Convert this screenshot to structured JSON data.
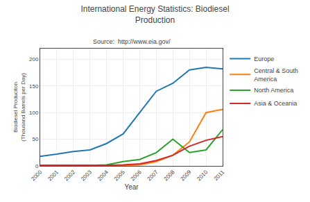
{
  "chart_data": {
    "type": "line",
    "title": "International Energy Statistics: Biodiesel\nProduction",
    "subtitle": "Source:  http://www.eia.gov/",
    "xlabel": "Year",
    "ylabel": "Biodiesel Produciton\n(Thousand Barrels per Day)",
    "x": [
      2000,
      2001,
      2002,
      2003,
      2004,
      2005,
      2006,
      2007,
      2008,
      2009,
      2010,
      2011
    ],
    "series": [
      {
        "name": "Europe",
        "values": [
          18,
          22,
          27,
          30,
          42,
          60,
          100,
          140,
          155,
          180,
          185,
          182
        ]
      },
      {
        "name": "Central & South\nAmerica",
        "values": [
          1,
          1,
          1,
          1,
          1,
          1,
          2,
          8,
          20,
          45,
          100,
          106
        ]
      },
      {
        "name": "North America",
        "values": [
          1,
          1,
          1,
          1,
          2,
          8,
          12,
          25,
          50,
          25,
          30,
          68
        ]
      },
      {
        "name": "Asia & Oceania",
        "values": [
          1,
          1,
          1,
          1,
          1,
          2,
          4,
          10,
          20,
          37,
          48,
          55
        ]
      }
    ],
    "xlim": [
      2000,
      2011
    ],
    "xticks": [
      2000,
      2001,
      2002,
      2003,
      2004,
      2005,
      2006,
      2007,
      2008,
      2009,
      2010,
      2011
    ],
    "ylim": [
      0,
      220
    ],
    "yticks": [
      0,
      50,
      100,
      150,
      200
    ],
    "grid": true,
    "legend": "upper right"
  }
}
